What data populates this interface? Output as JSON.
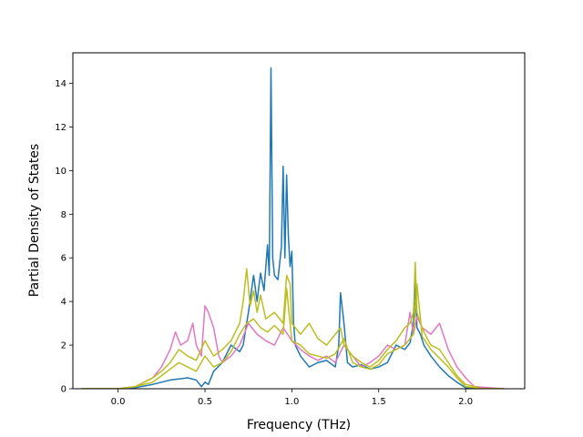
{
  "chart_data": {
    "type": "line",
    "title": "",
    "xlabel": "Frequency (THz)",
    "ylabel": "Partial Density of States",
    "xlim": [
      -0.26,
      2.34
    ],
    "ylim": [
      0,
      15.4
    ],
    "xticks": [
      0.0,
      0.5,
      1.0,
      1.5,
      2.0
    ],
    "xtick_labels": [
      "0.0",
      "0.5",
      "1.0",
      "1.5",
      "2.0"
    ],
    "yticks": [
      0,
      2,
      4,
      6,
      8,
      10,
      12,
      14
    ],
    "ytick_labels": [
      "0",
      "2",
      "4",
      "6",
      "8",
      "10",
      "12",
      "14"
    ],
    "grid": false,
    "series": [
      {
        "color": "#1f77b4",
        "x": [
          -0.21,
          0.0,
          0.1,
          0.2,
          0.25,
          0.3,
          0.35,
          0.4,
          0.45,
          0.48,
          0.5,
          0.52,
          0.55,
          0.6,
          0.65,
          0.7,
          0.72,
          0.75,
          0.78,
          0.8,
          0.82,
          0.84,
          0.86,
          0.87,
          0.88,
          0.89,
          0.9,
          0.92,
          0.94,
          0.95,
          0.96,
          0.97,
          0.98,
          0.99,
          1.0,
          1.01,
          1.02,
          1.05,
          1.1,
          1.15,
          1.2,
          1.25,
          1.27,
          1.28,
          1.3,
          1.32,
          1.35,
          1.4,
          1.45,
          1.5,
          1.55,
          1.6,
          1.65,
          1.68,
          1.7,
          1.71,
          1.72,
          1.74,
          1.76,
          1.8,
          1.85,
          1.9,
          1.95,
          2.0,
          2.1,
          2.22
        ],
        "y": [
          0,
          0,
          0.05,
          0.2,
          0.3,
          0.4,
          0.45,
          0.5,
          0.4,
          0.1,
          0.3,
          0.2,
          0.8,
          1.2,
          2.0,
          1.7,
          2.0,
          3.5,
          5.2,
          4.0,
          5.3,
          4.5,
          6.6,
          5.2,
          14.7,
          6.0,
          5.2,
          5.0,
          6.5,
          10.2,
          6.0,
          9.8,
          7.0,
          5.6,
          6.3,
          3.0,
          2.0,
          1.5,
          1.0,
          1.2,
          1.3,
          1.0,
          2.0,
          4.4,
          3.0,
          1.2,
          1.0,
          1.1,
          0.9,
          1.0,
          1.2,
          2.0,
          1.8,
          2.1,
          3.0,
          5.0,
          2.8,
          2.5,
          2.0,
          1.5,
          1.0,
          0.6,
          0.3,
          0.05,
          0,
          0
        ]
      },
      {
        "color": "#e377c2",
        "x": [
          -0.21,
          0.0,
          0.1,
          0.2,
          0.25,
          0.3,
          0.33,
          0.36,
          0.4,
          0.43,
          0.45,
          0.48,
          0.5,
          0.52,
          0.55,
          0.58,
          0.6,
          0.65,
          0.7,
          0.75,
          0.8,
          0.85,
          0.9,
          0.95,
          1.0,
          1.05,
          1.1,
          1.15,
          1.2,
          1.25,
          1.3,
          1.35,
          1.4,
          1.45,
          1.5,
          1.55,
          1.6,
          1.65,
          1.68,
          1.7,
          1.72,
          1.75,
          1.8,
          1.85,
          1.9,
          1.95,
          2.0,
          2.05,
          2.22
        ],
        "y": [
          0,
          0,
          0.1,
          0.5,
          1.0,
          1.8,
          2.6,
          2.0,
          2.2,
          3.0,
          2.0,
          1.5,
          3.8,
          3.5,
          2.8,
          1.5,
          1.2,
          1.5,
          2.0,
          3.0,
          2.5,
          2.2,
          2.0,
          2.8,
          2.2,
          1.8,
          1.5,
          1.3,
          1.5,
          1.2,
          2.0,
          1.5,
          1.0,
          1.2,
          1.5,
          2.0,
          1.8,
          2.0,
          3.5,
          2.5,
          3.3,
          2.8,
          2.5,
          3.0,
          1.8,
          1.0,
          0.5,
          0.1,
          0
        ]
      },
      {
        "color": "#bcbd22",
        "x": [
          -0.21,
          0.0,
          0.1,
          0.2,
          0.25,
          0.3,
          0.35,
          0.4,
          0.45,
          0.5,
          0.55,
          0.6,
          0.65,
          0.7,
          0.72,
          0.74,
          0.76,
          0.78,
          0.8,
          0.82,
          0.85,
          0.9,
          0.95,
          0.97,
          0.99,
          1.0,
          1.05,
          1.1,
          1.15,
          1.2,
          1.25,
          1.28,
          1.3,
          1.35,
          1.4,
          1.45,
          1.5,
          1.55,
          1.6,
          1.65,
          1.68,
          1.7,
          1.71,
          1.72,
          1.74,
          1.76,
          1.8,
          1.85,
          1.9,
          1.95,
          2.0,
          2.1,
          2.22
        ],
        "y": [
          0,
          0,
          0.1,
          0.5,
          0.8,
          1.2,
          1.8,
          1.5,
          1.3,
          2.2,
          1.5,
          1.8,
          2.2,
          3.0,
          4.0,
          5.5,
          3.8,
          4.5,
          3.5,
          4.3,
          3.2,
          3.5,
          3.0,
          5.2,
          4.8,
          3.0,
          2.5,
          3.0,
          2.3,
          2.0,
          2.5,
          2.8,
          2.0,
          1.5,
          1.2,
          1.0,
          1.3,
          1.8,
          2.2,
          2.8,
          3.0,
          3.5,
          5.8,
          3.5,
          3.0,
          2.6,
          2.0,
          1.8,
          1.2,
          0.6,
          0.2,
          0,
          0
        ]
      },
      {
        "color": "#bcbd22",
        "x": [
          -0.21,
          0.0,
          0.1,
          0.2,
          0.25,
          0.3,
          0.35,
          0.4,
          0.45,
          0.5,
          0.55,
          0.6,
          0.65,
          0.7,
          0.74,
          0.78,
          0.82,
          0.86,
          0.9,
          0.95,
          0.97,
          1.0,
          1.05,
          1.1,
          1.15,
          1.2,
          1.25,
          1.3,
          1.35,
          1.4,
          1.45,
          1.5,
          1.55,
          1.6,
          1.65,
          1.7,
          1.72,
          1.75,
          1.8,
          1.85,
          1.9,
          1.95,
          2.0,
          2.1,
          2.22
        ],
        "y": [
          0,
          0,
          0.1,
          0.3,
          0.6,
          0.9,
          1.2,
          1.0,
          0.8,
          1.5,
          1.0,
          1.2,
          1.7,
          2.5,
          3.0,
          3.2,
          2.8,
          2.6,
          2.9,
          2.5,
          4.6,
          2.2,
          2.0,
          1.6,
          1.5,
          1.4,
          1.6,
          2.3,
          1.2,
          1.0,
          0.9,
          1.1,
          1.6,
          1.8,
          2.0,
          2.5,
          4.8,
          2.4,
          1.8,
          1.4,
          1.0,
          0.5,
          0.1,
          0,
          0
        ]
      }
    ]
  }
}
